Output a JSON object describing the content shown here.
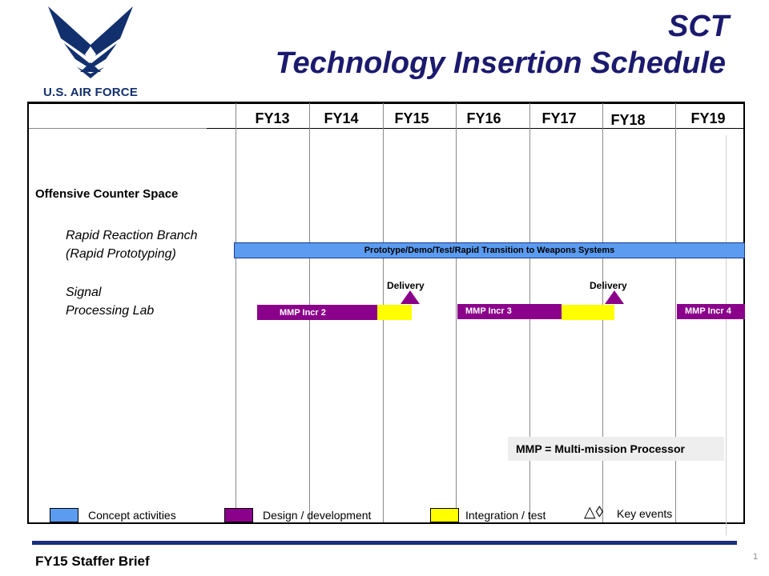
{
  "brand": {
    "logo_text": "U.S. AIR FORCE"
  },
  "title": {
    "line1": "SCT",
    "line2": "Technology Insertion Schedule"
  },
  "years": [
    "FY13",
    "FY14",
    "FY15",
    "FY16",
    "FY17",
    "FY18",
    "FY19"
  ],
  "rows": {
    "section": "Offensive Counter Space",
    "rapid_reaction": [
      "Rapid Reaction Branch",
      "(Rapid Prototyping)"
    ],
    "signal_lab": [
      "Signal",
      "Processing Lab"
    ]
  },
  "bars": {
    "prototype": "Prototype/Demo/Test/Rapid Transition to Weapons Systems",
    "mmp2": "MMP Incr 2",
    "mmp3": "MMP Incr 3",
    "mmp4": "MMP Incr 4"
  },
  "events": {
    "delivery1": "Delivery",
    "delivery2": "Delivery"
  },
  "note": "MMP = Multi-mission Processor",
  "legend": {
    "concept": "Concept activities",
    "design": "Design / development",
    "integration": "Integration  / test",
    "key_symbols": "△◊",
    "key": "Key events"
  },
  "colors": {
    "concept": "#5b9bf0",
    "design": "#8b008b",
    "integration": "#ffff00"
  },
  "footer": {
    "text": "FY15 Staffer Brief",
    "page": "1"
  }
}
